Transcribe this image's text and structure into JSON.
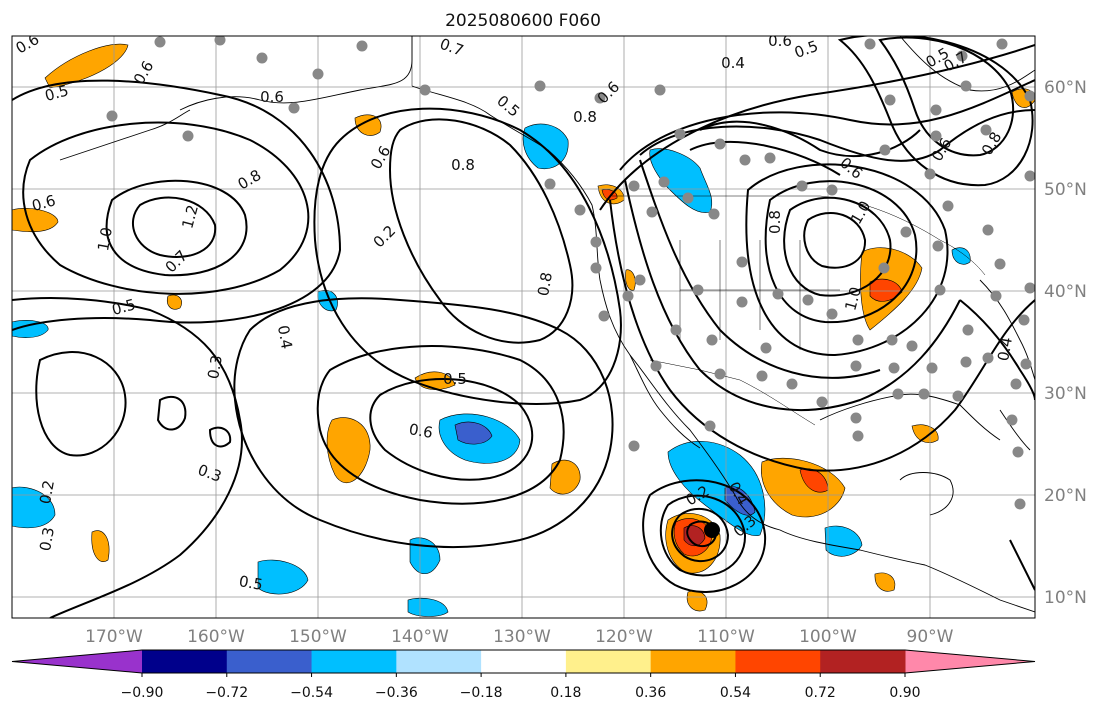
{
  "title": "2025080600 F060",
  "map": {
    "lon_ticks": [
      "170°W",
      "160°W",
      "150°W",
      "140°W",
      "130°W",
      "120°W",
      "110°W",
      "100°W",
      "90°W"
    ],
    "lat_ticks": [
      "60°N",
      "50°N",
      "40°N",
      "30°N",
      "20°N",
      "10°N"
    ],
    "contour_labels": [
      "0.6",
      "0.5",
      "0.6",
      "0.7",
      "0.6",
      "0.5",
      "0.4",
      "0.6",
      "0.5",
      "0.7",
      "0.5",
      "0.8",
      "0.6",
      "0.8",
      "0.6",
      "0.8",
      "1.2",
      "1.0",
      "0.6",
      "0.7",
      "0.5",
      "0.4",
      "0.3",
      "0.8",
      "0.8",
      "1.0",
      "0.5",
      "0.6",
      "0.3",
      "0.2",
      "0.3",
      "0.5",
      "0.2",
      "0.4",
      "0.3",
      "0.2",
      "0.4",
      "1.0",
      "0.6",
      "0.8",
      "0.6"
    ],
    "storm_marker": "tropical cyclone center",
    "shading_colors": [
      "#9932cc",
      "#00008b",
      "#3a5fcd",
      "#00bfff",
      "#b0e2ff",
      "#ffffff",
      "#fff08c",
      "#ffa500",
      "#ff4500",
      "#b22222",
      "#ff88aa"
    ]
  },
  "colorbar": {
    "tick_labels": [
      "−0.90",
      "−0.72",
      "−0.54",
      "−0.36",
      "−0.18",
      "0.18",
      "0.36",
      "0.54",
      "0.72",
      "0.90"
    ],
    "colors": [
      "#9932cc",
      "#00008b",
      "#3a5fcd",
      "#00bfff",
      "#b0e2ff",
      "#ffffff",
      "#fff08c",
      "#ffa500",
      "#ff4500",
      "#b22222",
      "#ff88aa"
    ]
  }
}
